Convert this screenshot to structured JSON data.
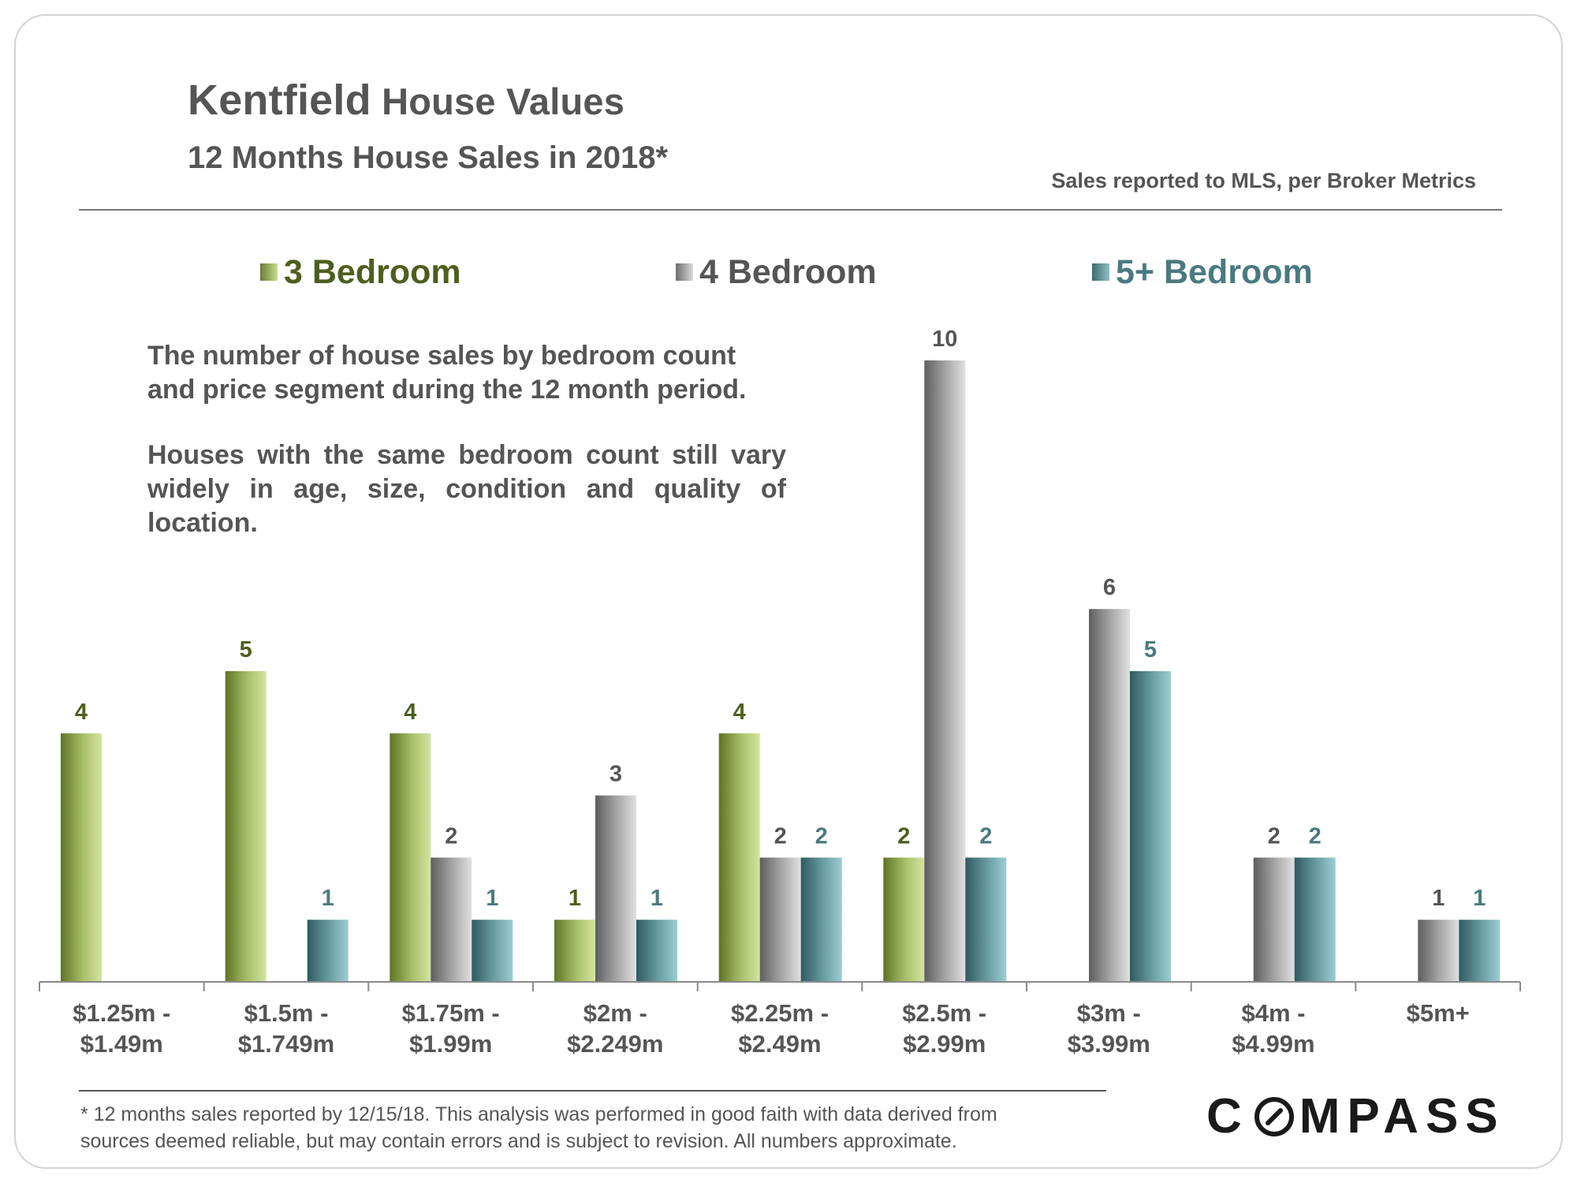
{
  "header": {
    "title_part1": "Kentfield",
    "title_part2": "House Values",
    "subtitle": "12 Months House Sales in 2018*",
    "source": "Sales reported to MLS, per Broker Metrics"
  },
  "description": {
    "para1": "The number of house sales by bedroom count and price segment during the 12 month period.",
    "para2": "Houses with the same bedroom count still vary widely in age, size, condition and quality of location."
  },
  "footnote": {
    "line1": "* 12 months sales reported by 12/15/18. This analysis was performed in good faith with data derived from",
    "line2": "sources deemed reliable, but may contain errors and is subject to revision. All numbers approximate."
  },
  "logo": {
    "text_left": "C",
    "text_right": "MPASS",
    "full": "COMPASS"
  },
  "colors": {
    "bed3": "#4d5f1e",
    "bed4": "#555555",
    "bed5": "#4a7a80",
    "text": "#555555"
  },
  "chart_data": {
    "type": "bar",
    "title": "Kentfield House Values",
    "categories": [
      [
        "$1.25m -",
        "$1.49m"
      ],
      [
        "$1.5m -",
        "$1.749m"
      ],
      [
        "$1.75m -",
        "$1.99m"
      ],
      [
        "$2m -",
        "$2.249m"
      ],
      [
        "$2.25m -",
        "$2.49m"
      ],
      [
        "$2.5m -",
        "$2.99m"
      ],
      [
        "$3m -",
        "$3.99m"
      ],
      [
        "$4m -",
        "$4.99m"
      ],
      [
        "$5m+"
      ]
    ],
    "series": [
      {
        "name": "3 Bedroom",
        "values": [
          4,
          5,
          4,
          1,
          4,
          2,
          null,
          null,
          null
        ]
      },
      {
        "name": "4 Bedroom",
        "values": [
          null,
          null,
          2,
          3,
          2,
          10,
          6,
          2,
          1
        ]
      },
      {
        "name": "5+ Bedroom",
        "values": [
          null,
          1,
          1,
          1,
          2,
          2,
          5,
          2,
          1
        ]
      }
    ],
    "ylim": [
      0,
      10
    ],
    "grid": false,
    "legend_position": "top",
    "xlabel": "",
    "ylabel": ""
  }
}
